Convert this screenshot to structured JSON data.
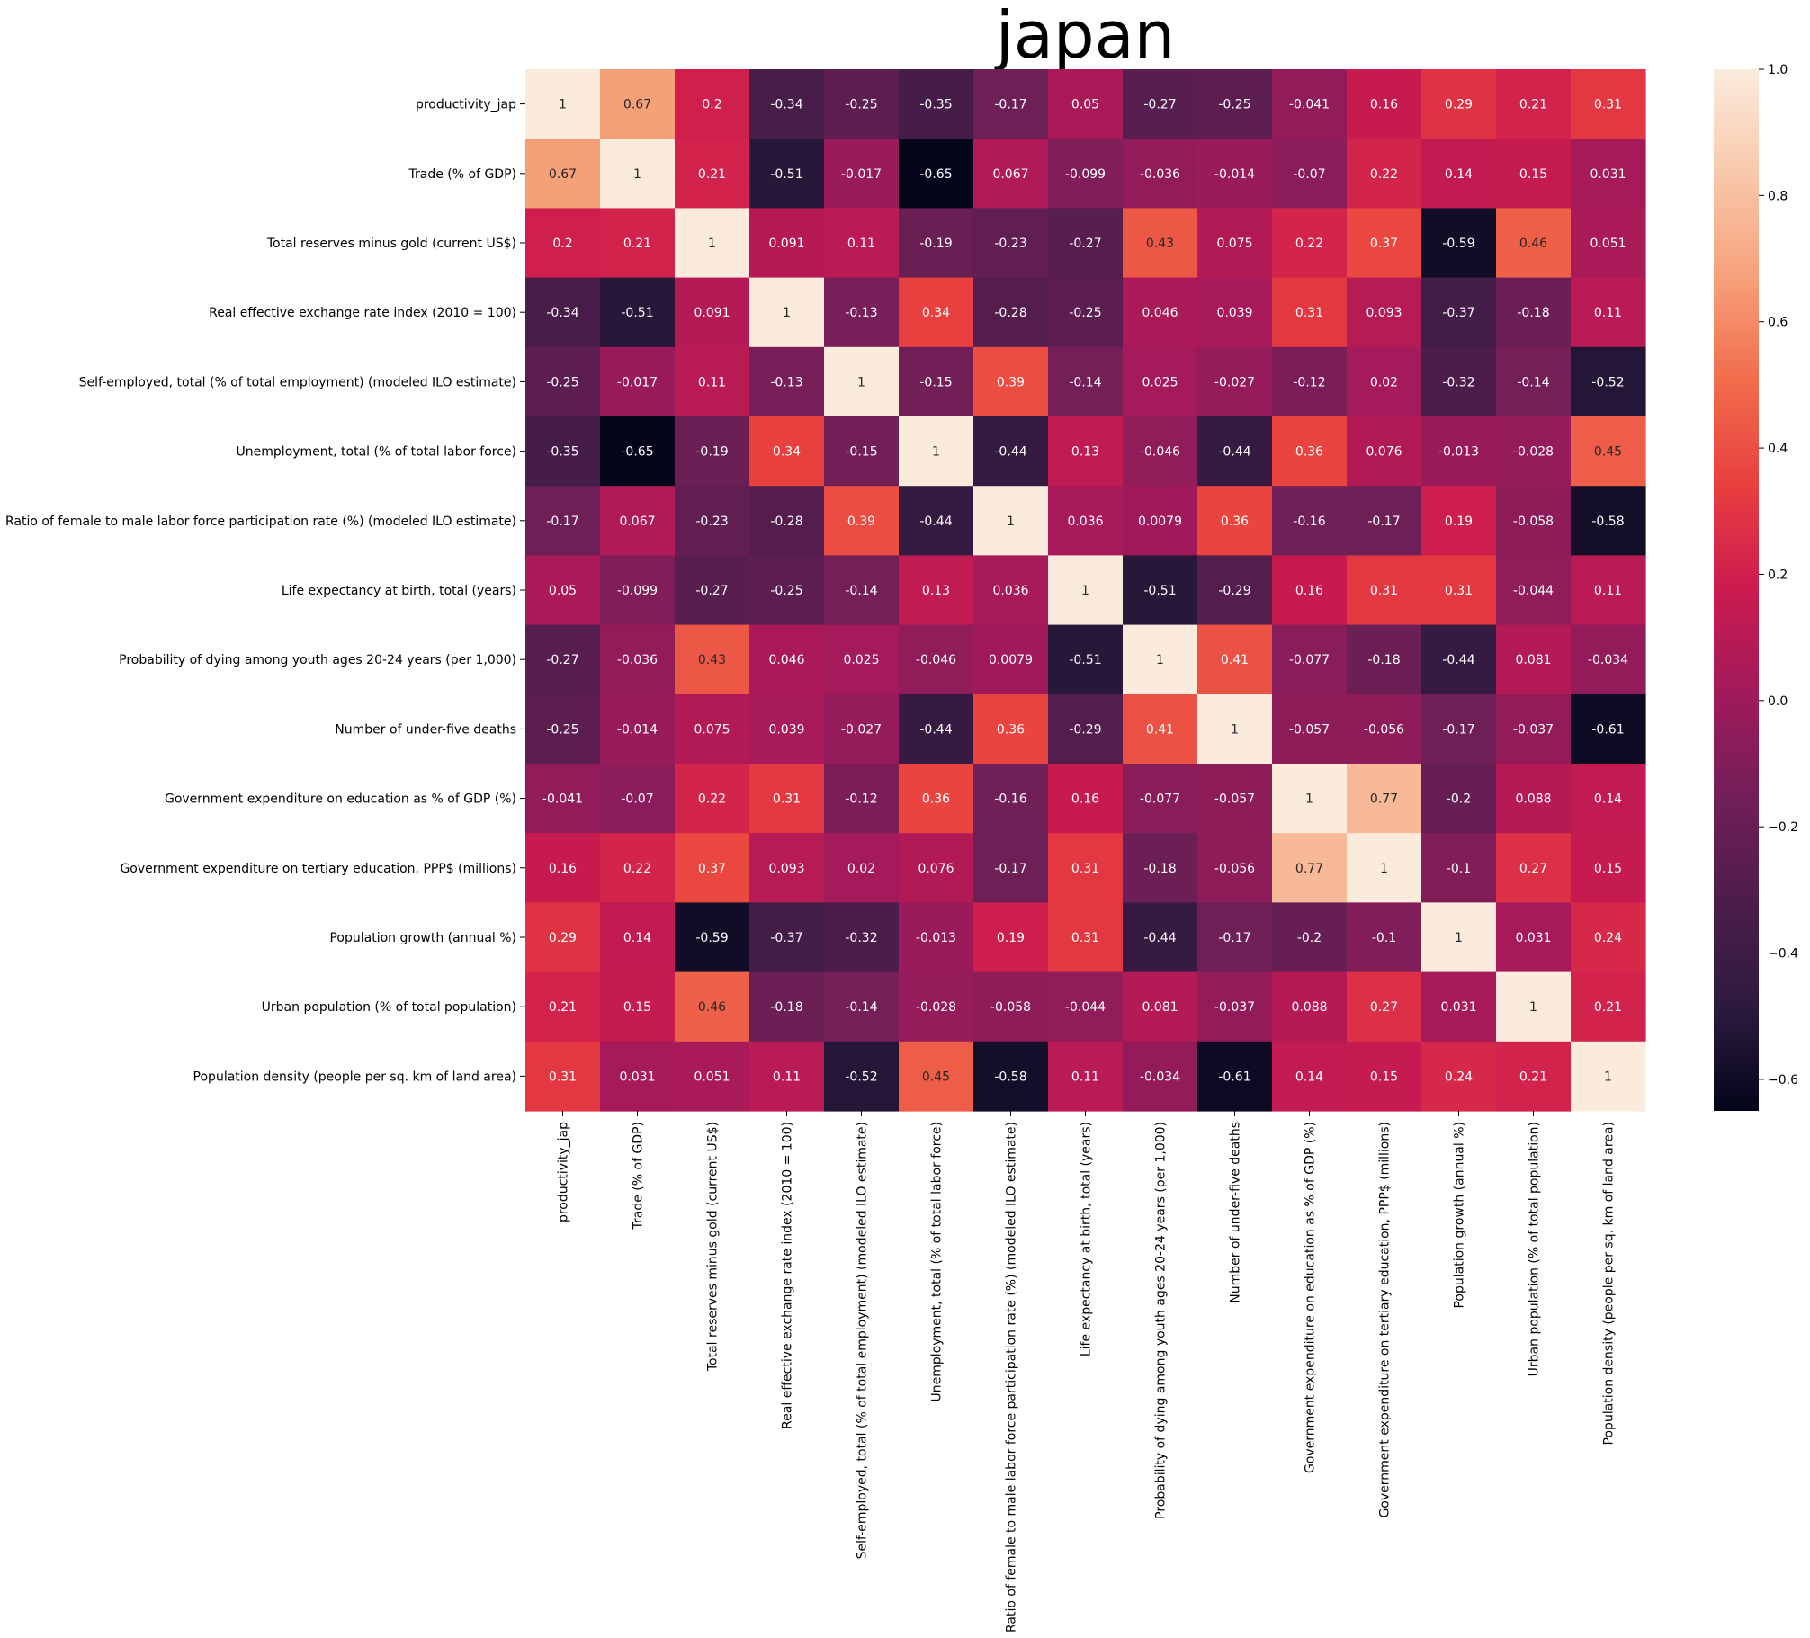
{
  "chart_data": {
    "type": "heatmap",
    "title": "japan",
    "labels": [
      "productivity_jap",
      "Trade (% of GDP)",
      "Total reserves minus gold (current US$)",
      "Real effective exchange rate index (2010 = 100)",
      "Self-employed, total (% of total employment) (modeled ILO estimate)",
      "Unemployment, total (% of total labor force)",
      "Ratio of female to male labor force participation rate (%) (modeled ILO estimate)",
      "Life expectancy at birth, total (years)",
      "Probability of dying among youth ages 20-24 years (per 1,000)",
      "Number of under-five deaths",
      "Government expenditure on education as % of GDP (%)",
      "Government expenditure on tertiary education, PPP$ (millions)",
      "Population growth (annual %)",
      "Urban population (% of total population)",
      "Population density (people per sq. km of land area)"
    ],
    "values": [
      [
        1,
        0.67,
        0.2,
        -0.34,
        -0.25,
        -0.35,
        -0.17,
        0.05,
        -0.27,
        -0.25,
        -0.041,
        0.16,
        0.29,
        0.21,
        0.31
      ],
      [
        0.67,
        1,
        0.21,
        -0.51,
        -0.017,
        -0.65,
        0.067,
        -0.099,
        -0.036,
        -0.014,
        -0.07,
        0.22,
        0.14,
        0.15,
        0.031
      ],
      [
        0.2,
        0.21,
        1,
        0.091,
        0.11,
        -0.19,
        -0.23,
        -0.27,
        0.43,
        0.075,
        0.22,
        0.37,
        -0.59,
        0.46,
        0.051
      ],
      [
        -0.34,
        -0.51,
        0.091,
        1,
        -0.13,
        0.34,
        -0.28,
        -0.25,
        0.046,
        0.039,
        0.31,
        0.093,
        -0.37,
        -0.18,
        0.11
      ],
      [
        -0.25,
        -0.017,
        0.11,
        -0.13,
        1,
        -0.15,
        0.39,
        -0.14,
        0.025,
        -0.027,
        -0.12,
        0.02,
        -0.32,
        -0.14,
        -0.52
      ],
      [
        -0.35,
        -0.65,
        -0.19,
        0.34,
        -0.15,
        1,
        -0.44,
        0.13,
        -0.046,
        -0.44,
        0.36,
        0.076,
        -0.013,
        -0.028,
        0.45
      ],
      [
        -0.17,
        0.067,
        -0.23,
        -0.28,
        0.39,
        -0.44,
        1,
        0.036,
        0.0079,
        0.36,
        -0.16,
        -0.17,
        0.19,
        -0.058,
        -0.58
      ],
      [
        0.05,
        -0.099,
        -0.27,
        -0.25,
        -0.14,
        0.13,
        0.036,
        1,
        -0.51,
        -0.29,
        0.16,
        0.31,
        0.31,
        -0.044,
        0.11
      ],
      [
        -0.27,
        -0.036,
        0.43,
        0.046,
        0.025,
        -0.046,
        0.0079,
        -0.51,
        1,
        0.41,
        -0.077,
        -0.18,
        -0.44,
        0.081,
        -0.034
      ],
      [
        -0.25,
        -0.014,
        0.075,
        0.039,
        -0.027,
        -0.44,
        0.36,
        -0.29,
        0.41,
        1,
        -0.057,
        -0.056,
        -0.17,
        -0.037,
        -0.61
      ],
      [
        -0.041,
        -0.07,
        0.22,
        0.31,
        -0.12,
        0.36,
        -0.16,
        0.16,
        -0.077,
        -0.057,
        1,
        0.77,
        -0.2,
        0.088,
        0.14
      ],
      [
        0.16,
        0.22,
        0.37,
        0.093,
        0.02,
        0.076,
        -0.17,
        0.31,
        -0.18,
        -0.056,
        0.77,
        1,
        -0.1,
        0.27,
        0.15
      ],
      [
        0.29,
        0.14,
        -0.59,
        -0.37,
        -0.32,
        -0.013,
        0.19,
        0.31,
        -0.44,
        -0.17,
        -0.2,
        -0.1,
        1,
        0.031,
        0.24
      ],
      [
        0.21,
        0.15,
        0.46,
        -0.18,
        -0.14,
        -0.028,
        -0.058,
        -0.044,
        0.081,
        -0.037,
        0.088,
        0.27,
        0.031,
        1,
        0.21
      ],
      [
        0.31,
        0.031,
        0.051,
        0.11,
        -0.52,
        0.45,
        -0.58,
        0.11,
        -0.034,
        -0.61,
        0.14,
        0.15,
        0.24,
        0.21,
        1
      ]
    ],
    "colorbar": {
      "range": [
        -0.65,
        1
      ],
      "ticks": [
        -0.6,
        -0.4,
        -0.2,
        0.0,
        0.2,
        0.4,
        0.6,
        0.8,
        1.0
      ],
      "tick_labels": [
        "−0.6",
        "−0.4",
        "−0.2",
        "0.0",
        "0.2",
        "0.4",
        "0.6",
        "0.8",
        "1.0"
      ],
      "colormap": "rocket",
      "colormap_stops": [
        "#03051a",
        "#2d1a3e",
        "#4c1d4b",
        "#711f57",
        "#a11a5b",
        "#cb1b4f",
        "#e83f3f",
        "#f16c4b",
        "#f6a07a",
        "#f8c9ab",
        "#faebdd"
      ]
    },
    "grid": false,
    "annotated": true
  }
}
